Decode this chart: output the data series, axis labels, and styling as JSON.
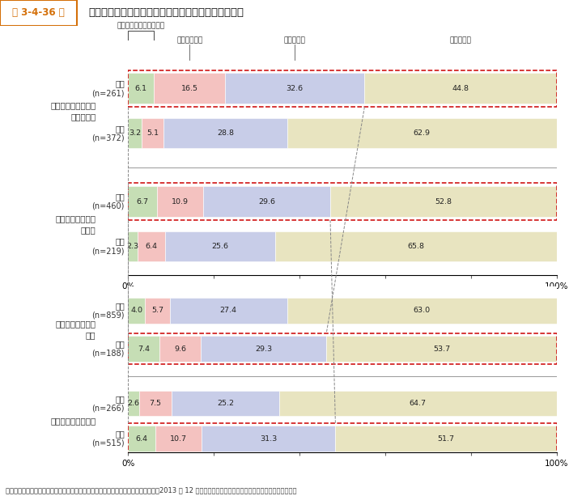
{
  "title_prefix": "第 3-4-36 図",
  "title": "企業の強み・弱み別の、輸出未実施企業の輸出の方針",
  "source": "資料：中小企業庁委託「中小企業の海外展開の実態把握にかかるアンケート調査」（2013 年 12 月、損保ジャパン日本興亜リスクマネジメント（株））",
  "colors": [
    "#c6deb5",
    "#f4c2c0",
    "#c8cde8",
    "#e8e4c0"
  ],
  "dashed_color": "#cc0000",
  "groups": [
    {
      "label": "新商品・サービスの\n企画開発力",
      "rows": [
        {
          "sublabel": "強み\n(n=261)",
          "values": [
            6.1,
            16.5,
            32.6,
            44.8
          ],
          "dashed": true
        },
        {
          "sublabel": "弱み\n(n=372)",
          "values": [
            3.2,
            5.1,
            28.8,
            62.9
          ],
          "dashed": false
        }
      ]
    },
    {
      "label": "商品・サービスの\n独自性",
      "rows": [
        {
          "sublabel": "強み\n(n=460)",
          "values": [
            6.7,
            10.9,
            29.6,
            52.8
          ],
          "dashed": true
        },
        {
          "sublabel": "弱み\n(n=219)",
          "values": [
            2.3,
            6.4,
            25.6,
            65.8
          ],
          "dashed": false
        }
      ]
    },
    {
      "label": "安定した取引先・\n商圏",
      "rows": [
        {
          "sublabel": "強み\n(n=859)",
          "values": [
            4.0,
            5.7,
            27.4,
            63.0
          ],
          "dashed": false
        },
        {
          "sublabel": "弱み\n(n=188)",
          "values": [
            7.4,
            9.6,
            29.3,
            53.7
          ],
          "dashed": true
        }
      ]
    },
    {
      "label": "資金体力・財務基盤",
      "rows": [
        {
          "sublabel": "強み\n(n=266)",
          "values": [
            2.6,
            7.5,
            25.2,
            64.7
          ],
          "dashed": false
        },
        {
          "sublabel": "弱み\n(n=515)",
          "values": [
            6.4,
            10.7,
            31.3,
            51.7
          ],
          "dashed": true
        }
      ]
    }
  ],
  "annot_label1": "実施する準備をしている",
  "annot_label2": "検討している",
  "annot_label3": "関心はある",
  "annot_label4": "関心はない"
}
